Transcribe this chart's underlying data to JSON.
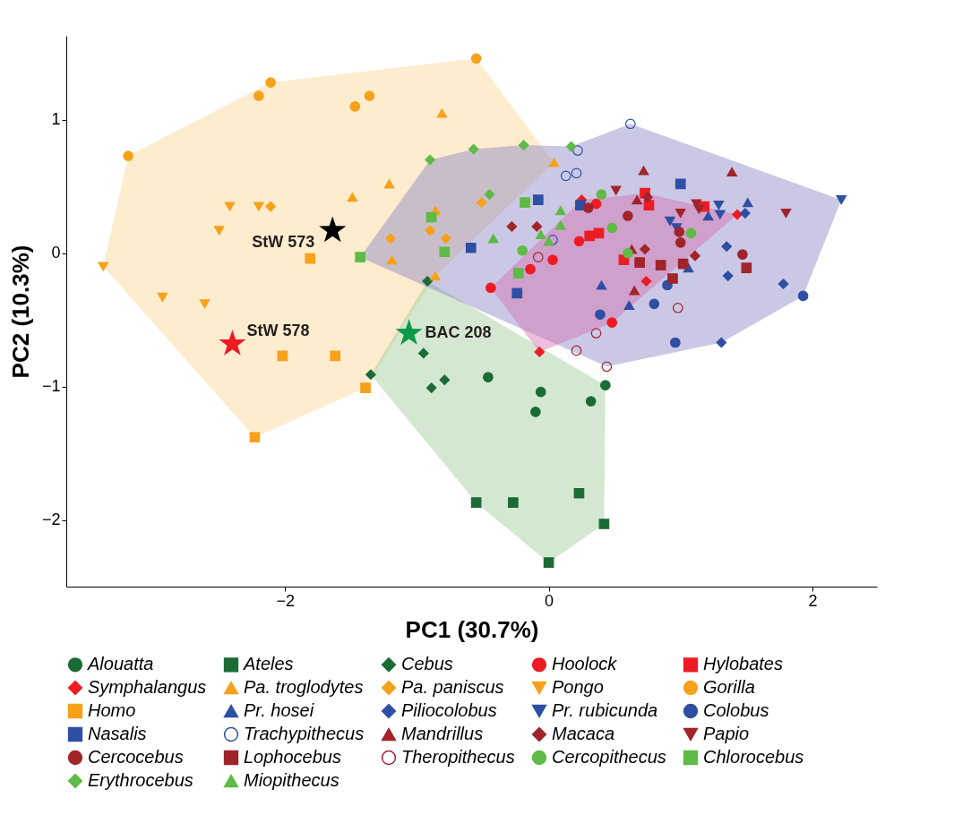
{
  "chart_data": {
    "type": "scatter",
    "xlabel": "PC1 (30.7%)",
    "ylabel": "PC2 (10.3%)",
    "xlim": [
      -3.66,
      2.49
    ],
    "ylim": [
      -2.5,
      1.63
    ],
    "xticks": [
      -2,
      0,
      2
    ],
    "yticks": [
      -2,
      -1,
      0,
      1
    ],
    "grid": false,
    "legend": "bottom",
    "annotations": [
      {
        "text": "StW 573",
        "x": -1.64,
        "y": 0.17
      },
      {
        "text": "StW 578",
        "x": -2.4,
        "y": -0.68
      },
      {
        "text": "BAC 208",
        "x": -1.06,
        "y": -0.6
      }
    ],
    "series": [
      {
        "type": "area",
        "color": "#fbd592",
        "x": [
          -3.38,
          -3.19,
          -2.11,
          -0.55,
          0.04,
          -0.86,
          -1.39,
          -2.23
        ],
        "values": [
          -0.1,
          0.73,
          1.28,
          1.46,
          0.68,
          -0.17,
          -1.01,
          -1.38
        ]
      },
      {
        "type": "area",
        "color": "#9fcb9a",
        "x": [
          -1.35,
          -0.92,
          0.43,
          0.42,
          0.0,
          -0.55
        ],
        "values": [
          -0.91,
          -0.21,
          -0.99,
          -2.03,
          -2.32,
          -1.87
        ]
      },
      {
        "type": "area",
        "color": "#8c86c6",
        "x": [
          -1.43,
          -0.9,
          -0.57,
          -0.19,
          0.17,
          0.62,
          2.22,
          1.93,
          1.31,
          0.44
        ],
        "values": [
          -0.03,
          0.7,
          0.78,
          0.81,
          0.8,
          0.97,
          0.4,
          -0.32,
          -0.67,
          -0.85
        ]
      },
      {
        "type": "area",
        "color": "#d66fb0",
        "x": [
          -0.44,
          0.25,
          0.73,
          1.43,
          0.48,
          -0.07
        ],
        "values": [
          -0.26,
          0.4,
          0.45,
          0.29,
          -0.52,
          -0.74
        ]
      },
      {
        "name": "Alouatta",
        "color": "#1a6b35",
        "marker": "circle",
        "x": [
          -0.46,
          -0.06,
          -0.1,
          0.32,
          0.43
        ],
        "values": [
          -0.93,
          -1.04,
          -1.19,
          -1.11,
          -0.99
        ]
      },
      {
        "name": "Ateles",
        "color": "#1a6b35",
        "marker": "square",
        "x": [
          -0.55,
          -0.27,
          0.23,
          0.42,
          0.0
        ],
        "values": [
          -1.87,
          -1.87,
          -1.8,
          -2.03,
          -2.32
        ]
      },
      {
        "name": "Cebus",
        "color": "#1a6b35",
        "marker": "diamond",
        "x": [
          -1.35,
          -0.95,
          -0.89,
          -0.79,
          -0.92
        ],
        "values": [
          -0.91,
          -0.75,
          -1.01,
          -0.95,
          -0.21
        ]
      },
      {
        "name": "Hoolock",
        "color": "#ed1c24",
        "marker": "circle",
        "x": [
          -0.44,
          -0.14,
          0.03,
          0.23,
          0.36,
          0.48
        ],
        "values": [
          -0.26,
          -0.12,
          -0.05,
          0.09,
          0.37,
          -0.52
        ]
      },
      {
        "name": "Hylobates",
        "color": "#ed1c24",
        "marker": "square",
        "x": [
          0.31,
          0.38,
          0.73,
          0.76,
          1.18,
          0.57
        ],
        "values": [
          0.13,
          0.15,
          0.45,
          0.36,
          0.35,
          -0.05
        ]
      },
      {
        "name": "Symphalangus",
        "color": "#ed1c24",
        "marker": "diamond",
        "x": [
          0.25,
          -0.07,
          0.74,
          1.43
        ],
        "values": [
          0.4,
          -0.74,
          -0.21,
          0.29
        ]
      },
      {
        "name": "Pa. troglodytes",
        "color": "#f7a11a",
        "marker": "triangle",
        "x": [
          -0.81,
          -1.21,
          -1.49,
          -1.19,
          -0.86,
          -0.86,
          0.04
        ],
        "values": [
          1.05,
          0.52,
          0.42,
          -0.05,
          0.32,
          -0.17,
          0.68
        ]
      },
      {
        "name": "Pa. paniscus",
        "color": "#f7a11a",
        "marker": "diamond",
        "x": [
          -2.11,
          -1.2,
          -0.9,
          -0.78,
          -0.51
        ],
        "values": [
          0.35,
          0.11,
          0.17,
          0.11,
          0.38
        ]
      },
      {
        "name": "Pongo",
        "color": "#f7a11a",
        "marker": "triangle-down",
        "x": [
          -2.42,
          -2.2,
          -2.5,
          -3.38,
          -2.93,
          -2.61
        ],
        "values": [
          0.35,
          0.35,
          0.17,
          -0.1,
          -0.33,
          -0.38
        ]
      },
      {
        "name": "Gorilla",
        "color": "#f7a11a",
        "marker": "circle",
        "x": [
          -0.55,
          -2.11,
          -2.2,
          -1.47,
          -3.19,
          -1.36
        ],
        "values": [
          1.46,
          1.28,
          1.18,
          1.1,
          0.73,
          1.18
        ]
      },
      {
        "name": "Homo",
        "color": "#f7a11a",
        "marker": "square",
        "x": [
          -1.81,
          -2.02,
          -1.62,
          -2.23,
          -1.39
        ],
        "values": [
          -0.04,
          -0.77,
          -0.77,
          -1.38,
          -1.01
        ]
      },
      {
        "name": "Pr. hosei",
        "color": "#2e4fa3",
        "marker": "triangle",
        "x": [
          0.4,
          1.51,
          1.21,
          1.06,
          0.61
        ],
        "values": [
          -0.24,
          0.38,
          0.28,
          -0.11,
          -0.39
        ]
      },
      {
        "name": "Piliocolobus",
        "color": "#2e4fa3",
        "marker": "diamond",
        "x": [
          1.35,
          1.49,
          1.36,
          1.78,
          1.31
        ],
        "values": [
          0.05,
          0.3,
          -0.17,
          -0.23,
          -0.67
        ]
      },
      {
        "name": "Pr. rubicunda",
        "color": "#2e4fa3",
        "marker": "triangle-down",
        "x": [
          1.29,
          1.3,
          0.92,
          0.97,
          2.22
        ],
        "values": [
          0.36,
          0.29,
          0.24,
          0.19,
          0.4
        ]
      },
      {
        "name": "Colobus",
        "color": "#2e4fa3",
        "marker": "circle",
        "x": [
          0.39,
          0.9,
          0.8,
          1.93,
          0.96
        ],
        "values": [
          -0.46,
          -0.24,
          -0.38,
          -0.32,
          -0.67
        ]
      },
      {
        "name": "Nasalis",
        "color": "#2e4fa3",
        "marker": "square",
        "x": [
          -0.08,
          -0.59,
          -0.24,
          0.24,
          1.0
        ],
        "values": [
          0.4,
          0.04,
          -0.3,
          0.36,
          0.52
        ]
      },
      {
        "name": "Trachypithecus",
        "color": "#2e4fa3",
        "marker": "circle-open",
        "x": [
          0.22,
          0.13,
          0.21,
          0.03,
          0.62
        ],
        "values": [
          0.77,
          0.58,
          0.6,
          0.1,
          0.97
        ]
      },
      {
        "name": "Mandrillus",
        "color": "#a0242a",
        "marker": "triangle",
        "x": [
          0.72,
          1.39,
          0.67,
          0.63,
          0.65
        ],
        "values": [
          0.62,
          0.61,
          0.4,
          0.03,
          -0.28
        ]
      },
      {
        "name": "Macaca",
        "color": "#a0242a",
        "marker": "diamond",
        "x": [
          -0.28,
          -0.09,
          0.75,
          0.73,
          1.11
        ],
        "values": [
          0.2,
          0.2,
          0.42,
          0.03,
          -0.02
        ]
      },
      {
        "name": "Papio",
        "color": "#a0242a",
        "marker": "triangle-down",
        "x": [
          0.51,
          1.0,
          1.12,
          1.14,
          1.8
        ],
        "values": [
          0.47,
          0.3,
          0.37,
          0.33,
          0.3
        ]
      },
      {
        "name": "Cercocebus",
        "color": "#a0242a",
        "marker": "circle",
        "x": [
          0.3,
          0.6,
          0.99,
          1.0,
          1.47
        ],
        "values": [
          0.34,
          0.28,
          0.16,
          0.08,
          -0.01
        ]
      },
      {
        "name": "Lophocebus",
        "color": "#a0242a",
        "marker": "square",
        "x": [
          0.69,
          0.85,
          1.02,
          0.94,
          1.5
        ],
        "values": [
          -0.07,
          -0.09,
          -0.08,
          -0.19,
          -0.11
        ]
      },
      {
        "name": "Theropithecus",
        "color": "#a0242a",
        "marker": "circle-open",
        "x": [
          -0.08,
          0.36,
          0.21,
          0.98,
          0.44
        ],
        "values": [
          -0.03,
          -0.6,
          -0.73,
          -0.41,
          -0.85
        ]
      },
      {
        "name": "Cercopithecus",
        "color": "#5dbb46",
        "marker": "circle",
        "x": [
          0.4,
          0.48,
          -0.2,
          1.08,
          0.6
        ],
        "values": [
          0.44,
          0.19,
          0.02,
          0.15,
          0.0
        ]
      },
      {
        "name": "Chlorocebus",
        "color": "#5dbb46",
        "marker": "square",
        "x": [
          -1.43,
          -0.89,
          -0.79,
          -0.18,
          -0.23
        ],
        "values": [
          -0.03,
          0.27,
          0.01,
          0.38,
          -0.15
        ]
      },
      {
        "name": "Erythrocebus",
        "color": "#5dbb46",
        "marker": "diamond",
        "x": [
          -0.9,
          -0.57,
          -0.19,
          0.17,
          -0.45
        ],
        "values": [
          0.7,
          0.78,
          0.81,
          0.8,
          0.44
        ]
      },
      {
        "name": "Miopithecus",
        "color": "#5dbb46",
        "marker": "triangle",
        "x": [
          -0.42,
          -0.06,
          0.09,
          0.09,
          0.0
        ],
        "values": [
          0.11,
          0.14,
          0.32,
          0.21,
          0.09
        ]
      },
      {
        "color": "#000000",
        "marker": "star",
        "x": [
          -1.64
        ],
        "values": [
          0.17
        ]
      },
      {
        "color": "#ed1c24",
        "marker": "star",
        "x": [
          -2.4
        ],
        "values": [
          -0.68
        ]
      },
      {
        "color": "#0c9a48",
        "marker": "star",
        "x": [
          -1.06
        ],
        "values": [
          -0.6
        ]
      }
    ]
  }
}
